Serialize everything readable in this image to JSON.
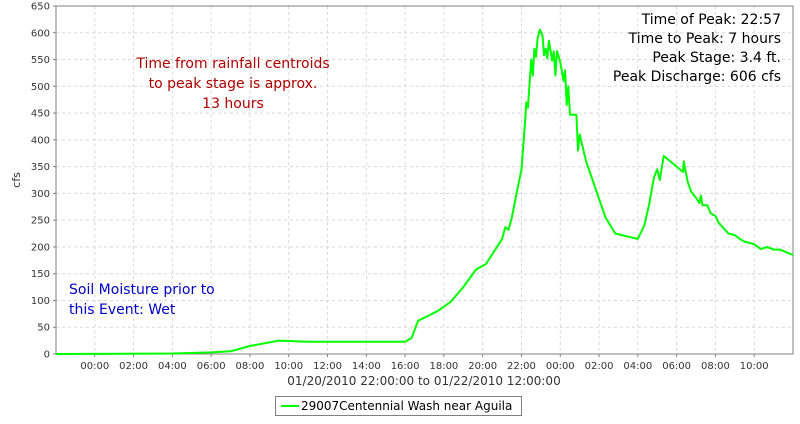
{
  "chart_data": {
    "type": "line",
    "title": "",
    "xlabel": "01/20/2010 22:00:00 to 01/22/2010 12:00:00",
    "ylabel": "cfs",
    "ylim": [
      0,
      650
    ],
    "xlim": [
      "01/20/2010 22:00",
      "01/22/2010 12:00"
    ],
    "yticks": [
      0,
      50,
      100,
      150,
      200,
      250,
      300,
      350,
      400,
      450,
      500,
      550,
      600,
      650
    ],
    "xticks": [
      {
        "t": "01/21/2010 00:00",
        "label": "00:00"
      },
      {
        "t": "01/21/2010 02:00",
        "label": "02:00"
      },
      {
        "t": "01/21/2010 04:00",
        "label": "04:00"
      },
      {
        "t": "01/21/2010 06:00",
        "label": "06:00"
      },
      {
        "t": "01/21/2010 08:00",
        "label": "08:00"
      },
      {
        "t": "01/21/2010 10:00",
        "label": "10:00"
      },
      {
        "t": "01/21/2010 12:00",
        "label": "12:00"
      },
      {
        "t": "01/21/2010 14:00",
        "label": "14:00"
      },
      {
        "t": "01/21/2010 16:00",
        "label": "16:00"
      },
      {
        "t": "01/21/2010 18:00",
        "label": "18:00"
      },
      {
        "t": "01/21/2010 20:00",
        "label": "20:00"
      },
      {
        "t": "01/21/2010 22:00",
        "label": "22:00"
      },
      {
        "t": "01/22/2010 00:00",
        "label": "00:00"
      },
      {
        "t": "01/22/2010 02:00",
        "label": "02:00"
      },
      {
        "t": "01/22/2010 04:00",
        "label": "04:00"
      },
      {
        "t": "01/22/2010 06:00",
        "label": "06:00"
      },
      {
        "t": "01/22/2010 08:00",
        "label": "08:00"
      },
      {
        "t": "01/22/2010 10:00",
        "label": "10:00"
      }
    ],
    "grid": true,
    "legend_position": "bottom",
    "series": [
      {
        "name": "29007Centennial Wash near Aguila",
        "color": "#00ff00",
        "points": [
          [
            "01/20/2010 22:00",
            0
          ],
          [
            "01/21/2010 04:00",
            1
          ],
          [
            "01/21/2010 06:00",
            3
          ],
          [
            "01/21/2010 07:00",
            5
          ],
          [
            "01/21/2010 08:00",
            15
          ],
          [
            "01/21/2010 09:30",
            25
          ],
          [
            "01/21/2010 11:00",
            23
          ],
          [
            "01/21/2010 16:00",
            23
          ],
          [
            "01/21/2010 16:20",
            30
          ],
          [
            "01/21/2010 16:40",
            62
          ],
          [
            "01/21/2010 17:00",
            68
          ],
          [
            "01/21/2010 17:40",
            80
          ],
          [
            "01/21/2010 18:20",
            97
          ],
          [
            "01/21/2010 19:00",
            125
          ],
          [
            "01/21/2010 19:40",
            158
          ],
          [
            "01/21/2010 20:10",
            168
          ],
          [
            "01/21/2010 21:00",
            215
          ],
          [
            "01/21/2010 21:10",
            237
          ],
          [
            "01/21/2010 21:20",
            232
          ],
          [
            "01/21/2010 21:30",
            255
          ],
          [
            "01/21/2010 21:45",
            300
          ],
          [
            "01/21/2010 22:00",
            345
          ],
          [
            "01/21/2010 22:10",
            425
          ],
          [
            "01/21/2010 22:15",
            470
          ],
          [
            "01/21/2010 22:20",
            460
          ],
          [
            "01/21/2010 22:25",
            505
          ],
          [
            "01/21/2010 22:30",
            550
          ],
          [
            "01/21/2010 22:35",
            520
          ],
          [
            "01/21/2010 22:40",
            570
          ],
          [
            "01/21/2010 22:45",
            555
          ],
          [
            "01/21/2010 22:50",
            590
          ],
          [
            "01/21/2010 22:57",
            606
          ],
          [
            "01/21/2010 23:05",
            595
          ],
          [
            "01/21/2010 23:10",
            558
          ],
          [
            "01/21/2010 23:15",
            570
          ],
          [
            "01/21/2010 23:20",
            552
          ],
          [
            "01/21/2010 23:25",
            585
          ],
          [
            "01/21/2010 23:35",
            548
          ],
          [
            "01/21/2010 23:40",
            565
          ],
          [
            "01/21/2010 23:45",
            520
          ],
          [
            "01/21/2010 23:50",
            566
          ],
          [
            "01/22/2010 00:00",
            545
          ],
          [
            "01/22/2010 00:10",
            510
          ],
          [
            "01/22/2010 00:15",
            530
          ],
          [
            "01/22/2010 00:20",
            465
          ],
          [
            "01/22/2010 00:25",
            500
          ],
          [
            "01/22/2010 00:30",
            447
          ],
          [
            "01/22/2010 00:50",
            447
          ],
          [
            "01/22/2010 00:55",
            380
          ],
          [
            "01/22/2010 01:00",
            410
          ],
          [
            "01/22/2010 01:20",
            360
          ],
          [
            "01/22/2010 02:20",
            255
          ],
          [
            "01/22/2010 02:50",
            225
          ],
          [
            "01/22/2010 04:00",
            215
          ],
          [
            "01/22/2010 04:20",
            240
          ],
          [
            "01/22/2010 04:35",
            280
          ],
          [
            "01/22/2010 04:50",
            330
          ],
          [
            "01/22/2010 05:00",
            345
          ],
          [
            "01/22/2010 05:08",
            325
          ],
          [
            "01/22/2010 05:20",
            370
          ],
          [
            "01/22/2010 06:20",
            340
          ],
          [
            "01/22/2010 06:22",
            360
          ],
          [
            "01/22/2010 06:35",
            320
          ],
          [
            "01/22/2010 06:45",
            303
          ],
          [
            "01/22/2010 07:00",
            292
          ],
          [
            "01/22/2010 07:10",
            282
          ],
          [
            "01/22/2010 07:15",
            296
          ],
          [
            "01/22/2010 07:20",
            278
          ],
          [
            "01/22/2010 07:35",
            278
          ],
          [
            "01/22/2010 07:45",
            263
          ],
          [
            "01/22/2010 08:00",
            258
          ],
          [
            "01/22/2010 08:10",
            245
          ],
          [
            "01/22/2010 08:30",
            232
          ],
          [
            "01/22/2010 08:40",
            225
          ],
          [
            "01/22/2010 09:00",
            222
          ],
          [
            "01/22/2010 09:15",
            215
          ],
          [
            "01/22/2010 09:30",
            210
          ],
          [
            "01/22/2010 10:00",
            205
          ],
          [
            "01/22/2010 10:20",
            196
          ],
          [
            "01/22/2010 10:40",
            200
          ],
          [
            "01/22/2010 11:00",
            195
          ],
          [
            "01/22/2010 11:20",
            195
          ],
          [
            "01/22/2010 11:40",
            190
          ],
          [
            "01/22/2010 12:00",
            185
          ]
        ]
      }
    ],
    "annotations": {
      "rainfall_note": [
        "Time from rainfall centroids",
        "to peak stage is approx.",
        "13 hours"
      ],
      "soil_note": [
        "Soil Moisture prior to",
        "this Event: Wet"
      ],
      "peak_info": [
        "Time of Peak: 22:57",
        "Time to Peak: 7 hours",
        "Peak Stage: 3.4 ft.",
        "Peak Discharge: 606 cfs"
      ]
    },
    "colors": {
      "rainfall_note": "#b00000",
      "soil_note": "#0000c8",
      "peak_info": "#000000"
    }
  }
}
